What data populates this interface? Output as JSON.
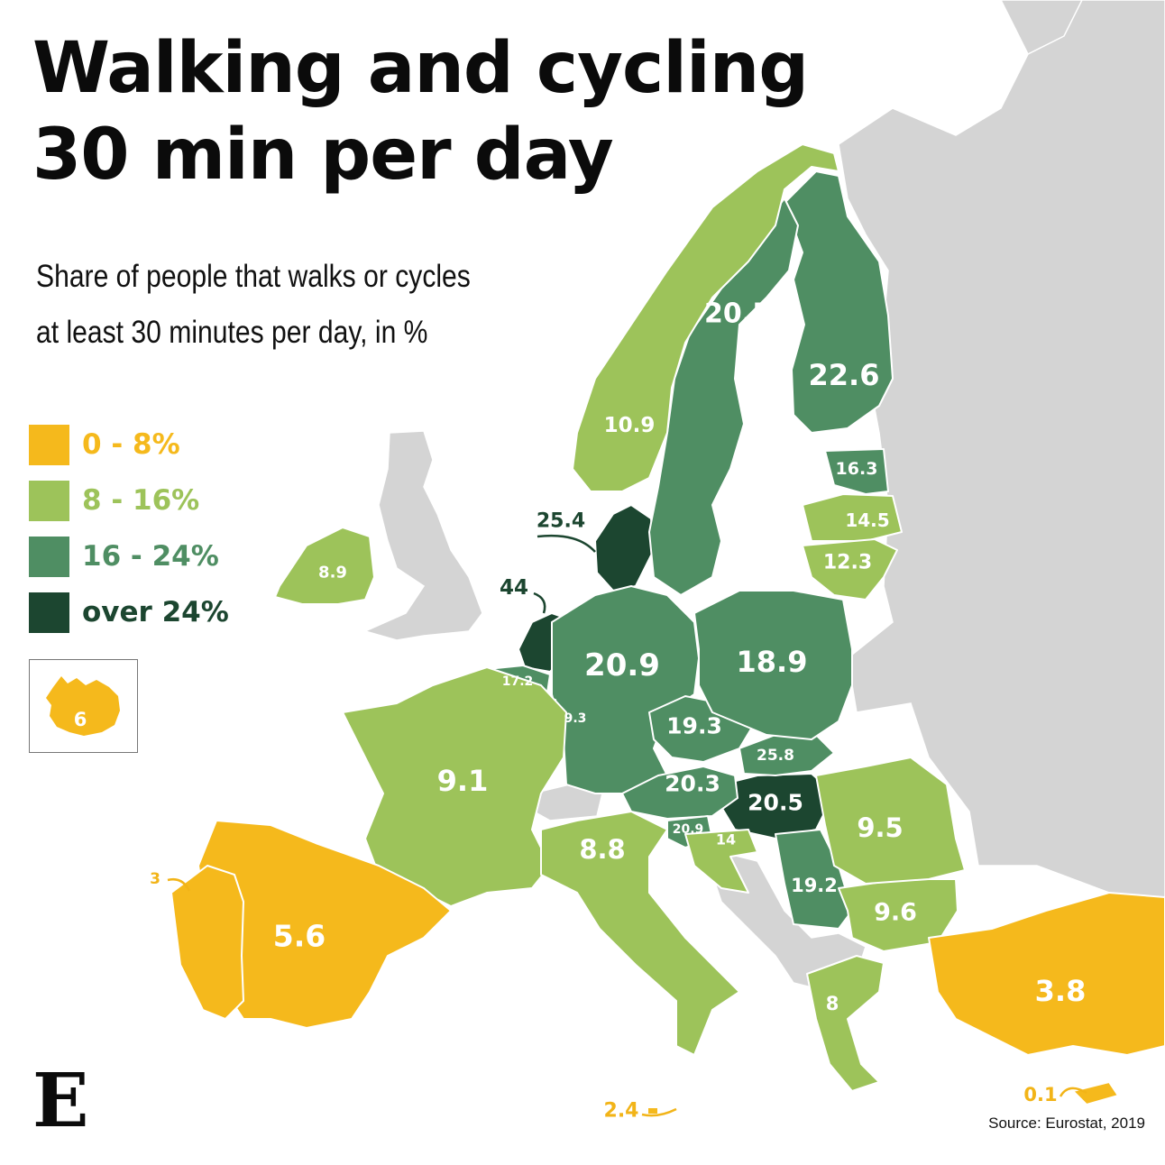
{
  "title_line1": "Walking and cycling",
  "title_line2": "30 min per day",
  "subtitle_line1": "Share of people that walks or cycles",
  "subtitle_line2": "at least 30 minutes per day, in %",
  "legend": [
    {
      "label": "0 - 8%",
      "color": "#f5b91c"
    },
    {
      "label": "8 - 16%",
      "color": "#9dc35a"
    },
    {
      "label": "16 - 24%",
      "color": "#4f8e63"
    },
    {
      "label": "over 24%",
      "color": "#1c4630"
    }
  ],
  "non_eu_color": "#d4d4d4",
  "regions": [
    {
      "name": "Netherlands",
      "value": "44"
    },
    {
      "name": "Hungary",
      "value": "25.8"
    },
    {
      "name": "Denmark",
      "value": "25.4"
    },
    {
      "name": "Finland",
      "value": "22.6"
    },
    {
      "name": "Germany",
      "value": "20.9"
    },
    {
      "name": "Austria",
      "value": "20.3"
    },
    {
      "name": "Sweden",
      "value": "20.5"
    },
    {
      "name": "Slovakia",
      "value": "20.5"
    },
    {
      "name": "Slovenia",
      "value": "20.9"
    },
    {
      "name": "Czechia",
      "value": "19.3"
    },
    {
      "name": "Serbia",
      "value": "19.2"
    },
    {
      "name": "Poland",
      "value": "18.9"
    },
    {
      "name": "Belgium",
      "value": "17.2"
    },
    {
      "name": "Estonia",
      "value": "16.3"
    },
    {
      "name": "Latvia",
      "value": "14.5"
    },
    {
      "name": "Croatia",
      "value": "14"
    },
    {
      "name": "Lithuania",
      "value": "12.3"
    },
    {
      "name": "Norway",
      "value": "10.9"
    },
    {
      "name": "Bulgaria",
      "value": "9.6"
    },
    {
      "name": "Romania",
      "value": "9.5"
    },
    {
      "name": "Luxembourg",
      "value": "9.3"
    },
    {
      "name": "France",
      "value": "9.1"
    },
    {
      "name": "Ireland",
      "value": "8.9"
    },
    {
      "name": "Italy",
      "value": "8.8"
    },
    {
      "name": "Greece",
      "value": "8"
    },
    {
      "name": "Iceland",
      "value": "6"
    },
    {
      "name": "Spain",
      "value": "5.6"
    },
    {
      "name": "Turkey",
      "value": "3.8"
    },
    {
      "name": "Portugal",
      "value": "3"
    },
    {
      "name": "Malta",
      "value": "2.4"
    },
    {
      "name": "Cyprus",
      "value": "0.1"
    }
  ],
  "logo": "E",
  "source": "Source: Eurostat, 2019"
}
